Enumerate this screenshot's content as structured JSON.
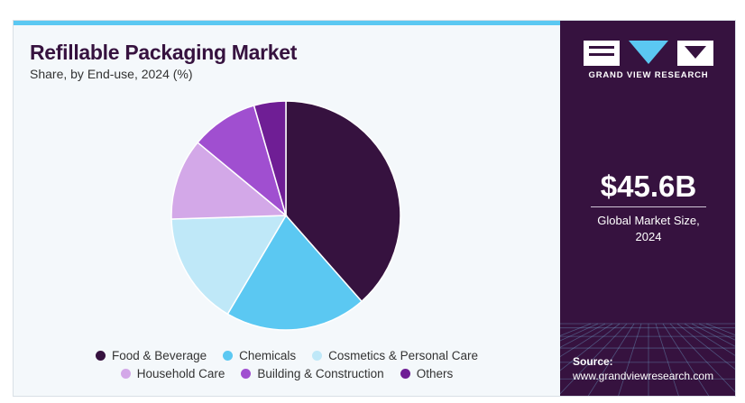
{
  "header": {
    "title": "Refillable Packaging Market",
    "subtitle": "Share, by End-use, 2024 (%)"
  },
  "colors": {
    "accent": "#5bc8f2",
    "sidebar": "#36123f"
  },
  "chart_data": {
    "type": "pie",
    "title": "Refillable Packaging Market",
    "subtitle": "Share, by End-use, 2024 (%)",
    "start_angle_deg": 0,
    "direction": "clockwise",
    "legend_position": "bottom",
    "series": [
      {
        "name": "Food & Beverage",
        "value": 38.5,
        "color": "#36123f"
      },
      {
        "name": "Chemicals",
        "value": 20.0,
        "color": "#5bc8f2"
      },
      {
        "name": "Cosmetics & Personal Care",
        "value": 16.0,
        "color": "#bfe8f8"
      },
      {
        "name": "Household Care",
        "value": 11.5,
        "color": "#d3a8e8"
      },
      {
        "name": "Building & Construction",
        "value": 9.5,
        "color": "#a04fd0"
      },
      {
        "name": "Others",
        "value": 4.5,
        "color": "#6f1e95"
      }
    ]
  },
  "sidebar": {
    "brand": "GRAND VIEW RESEARCH",
    "market_size": "$45.6B",
    "market_label_line1": "Global Market Size,",
    "market_label_line2": "2024",
    "source_label": "Source:",
    "source_url": "www.grandviewresearch.com"
  }
}
